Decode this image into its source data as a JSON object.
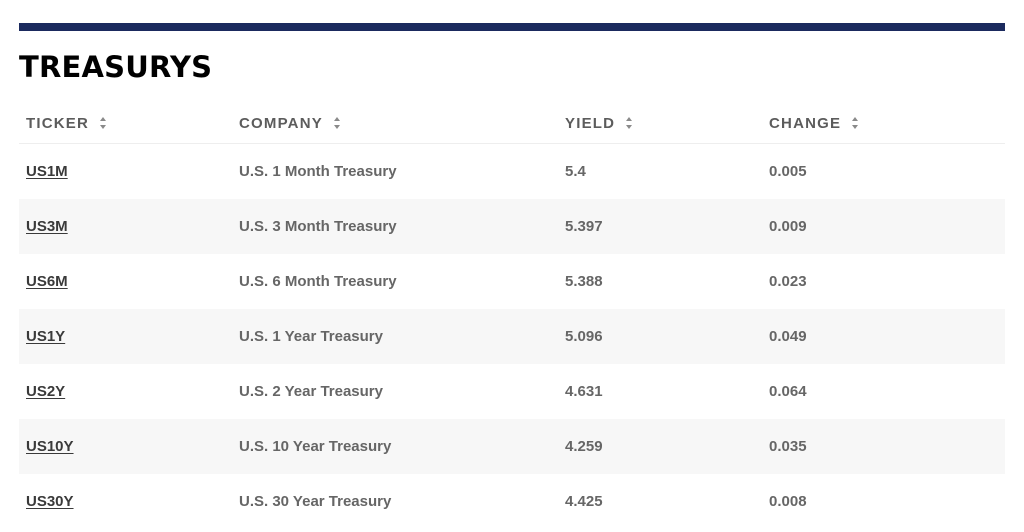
{
  "section": {
    "title": "TREASURYS"
  },
  "table": {
    "headers": {
      "ticker": "TICKER",
      "company": "COMPANY",
      "yield": "YIELD",
      "change": "CHANGE"
    },
    "rows": [
      {
        "ticker": "US1M",
        "company": "U.S. 1 Month Treasury",
        "yield": "5.4",
        "change": "0.005"
      },
      {
        "ticker": "US3M",
        "company": "U.S. 3 Month Treasury",
        "yield": "5.397",
        "change": "0.009"
      },
      {
        "ticker": "US6M",
        "company": "U.S. 6 Month Treasury",
        "yield": "5.388",
        "change": "0.023"
      },
      {
        "ticker": "US1Y",
        "company": "U.S. 1 Year Treasury",
        "yield": "5.096",
        "change": "0.049"
      },
      {
        "ticker": "US2Y",
        "company": "U.S. 2 Year Treasury",
        "yield": "4.631",
        "change": "0.064"
      },
      {
        "ticker": "US10Y",
        "company": "U.S. 10 Year Treasury",
        "yield": "4.259",
        "change": "0.035"
      },
      {
        "ticker": "US30Y",
        "company": "U.S. 30 Year Treasury",
        "yield": "4.425",
        "change": "0.008"
      }
    ]
  },
  "colors": {
    "top_rule": "#1b2a5e",
    "alt_row_bg": "#f7f7f7",
    "header_text": "#5c5c5c",
    "cell_text": "#666666"
  },
  "icons": {
    "sort": "sort-updown-icon"
  }
}
